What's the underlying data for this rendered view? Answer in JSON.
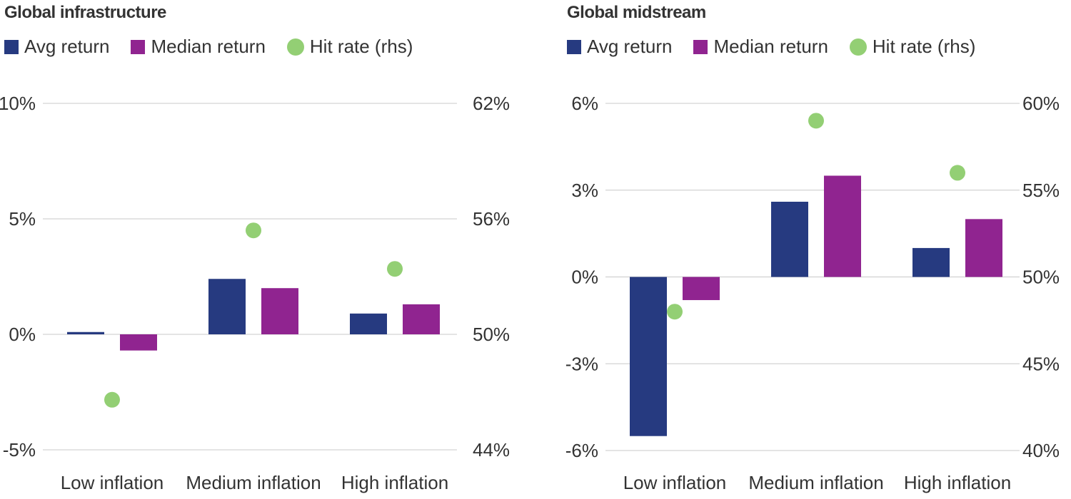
{
  "chart_data": [
    {
      "type": "bar",
      "title": "Global infrastructure",
      "categories": [
        "Low inflation",
        "Medium inflation",
        "High inflation"
      ],
      "series": [
        {
          "name": "Avg return",
          "kind": "bar",
          "axis": "left",
          "color": "#263A80",
          "values": [
            0.1,
            2.4,
            0.9
          ]
        },
        {
          "name": "Median return",
          "kind": "bar",
          "axis": "left",
          "color": "#902490",
          "values": [
            -0.7,
            2.0,
            1.3
          ]
        },
        {
          "name": "Hit rate (rhs)",
          "kind": "scatter",
          "axis": "right",
          "color": "#93CF74",
          "values": [
            46.6,
            55.4,
            53.4
          ]
        }
      ],
      "ylim_left": [
        -5,
        10
      ],
      "yticks_left": [
        "10%",
        "5%",
        "0%",
        "-5%"
      ],
      "yticks_left_values": [
        10,
        5,
        0,
        -5
      ],
      "ylim_right": [
        44,
        62
      ],
      "yticks_right": [
        "62%",
        "56%",
        "50%",
        "44%"
      ],
      "yticks_right_values": [
        62,
        56,
        50,
        44
      ],
      "grid": true,
      "legend_position": "top-left"
    },
    {
      "type": "bar",
      "title": "Global midstream",
      "categories": [
        "Low inflation",
        "Medium inflation",
        "High inflation"
      ],
      "series": [
        {
          "name": "Avg return",
          "kind": "bar",
          "axis": "left",
          "color": "#263A80",
          "values": [
            -5.5,
            2.6,
            1.0
          ]
        },
        {
          "name": "Median return",
          "kind": "bar",
          "axis": "left",
          "color": "#902490",
          "values": [
            -0.8,
            3.5,
            2.0
          ]
        },
        {
          "name": "Hit rate (rhs)",
          "kind": "scatter",
          "axis": "right",
          "color": "#93CF74",
          "values": [
            48.0,
            59.0,
            56.0
          ]
        }
      ],
      "ylim_left": [
        -6,
        6
      ],
      "yticks_left": [
        "6%",
        "3%",
        "0%",
        "-3%",
        "-6%"
      ],
      "yticks_left_values": [
        6,
        3,
        0,
        -3,
        -6
      ],
      "ylim_right": [
        40,
        60
      ],
      "yticks_right": [
        "60%",
        "55%",
        "50%",
        "45%",
        "40%"
      ],
      "yticks_right_values": [
        60,
        55,
        50,
        45,
        40
      ],
      "grid": true,
      "legend_position": "top-left"
    }
  ]
}
